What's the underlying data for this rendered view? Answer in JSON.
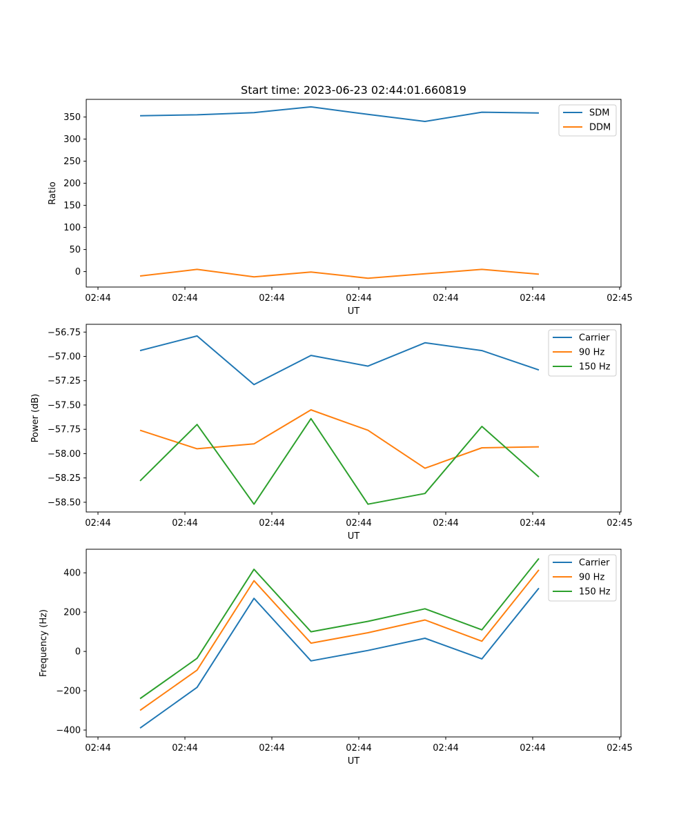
{
  "figure_title": "Start time: 2023-06-23 02:44:01.660819",
  "colors": {
    "blue": "#1f77b4",
    "orange": "#ff7f0e",
    "green": "#2ca02c"
  },
  "chart_data": [
    {
      "type": "line",
      "title": "Start time: 2023-06-23 02:44:01.660819",
      "xlabel": "UT",
      "ylabel": "Ratio",
      "x_ticks": [
        "02:44",
        "02:44",
        "02:44",
        "02:44",
        "02:44",
        "02:44",
        "02:44"
      ],
      "x_ticks_end": "02:45",
      "y_ticks": [
        0,
        50,
        100,
        150,
        200,
        250,
        300,
        350
      ],
      "ylim": [
        -35,
        390
      ],
      "legend_position": "top-right",
      "x": [
        1,
        2,
        3,
        4,
        5,
        6,
        7,
        8
      ],
      "series": [
        {
          "name": "SDM",
          "color": "#1f77b4",
          "values": [
            353,
            355,
            360,
            373,
            356,
            340,
            361,
            359
          ]
        },
        {
          "name": "DDM",
          "color": "#ff7f0e",
          "values": [
            -10,
            5,
            -12,
            -1,
            -15,
            -5,
            5,
            -6
          ]
        }
      ]
    },
    {
      "type": "line",
      "title": "",
      "xlabel": "UT",
      "ylabel": "Power (dB)",
      "x_ticks": [
        "02:44",
        "02:44",
        "02:44",
        "02:44",
        "02:44",
        "02:44",
        "02:44"
      ],
      "x_ticks_end": "02:45",
      "y_ticks": [
        -56.75,
        -57.0,
        -57.25,
        -57.5,
        -57.75,
        -58.0,
        -58.25,
        -58.5
      ],
      "y_tick_labels": [
        "−56.75",
        "−57.00",
        "−57.25",
        "−57.50",
        "−57.75",
        "−58.00",
        "−58.25",
        "−58.50"
      ],
      "ylim": [
        -58.6,
        -56.67
      ],
      "legend_position": "top-right",
      "x": [
        1,
        2,
        3,
        4,
        5,
        6,
        7,
        8
      ],
      "series": [
        {
          "name": "Carrier",
          "color": "#1f77b4",
          "values": [
            -56.94,
            -56.79,
            -57.29,
            -56.99,
            -57.1,
            -56.86,
            -56.94,
            -57.14
          ]
        },
        {
          "name": "90 Hz",
          "color": "#ff7f0e",
          "values": [
            -57.76,
            -57.95,
            -57.9,
            -57.55,
            -57.76,
            -58.15,
            -57.94,
            -57.93
          ]
        },
        {
          "name": "150 Hz",
          "color": "#2ca02c",
          "values": [
            -58.28,
            -57.7,
            -58.52,
            -57.64,
            -58.52,
            -58.41,
            -57.72,
            -58.24
          ]
        }
      ]
    },
    {
      "type": "line",
      "title": "",
      "xlabel": "UT",
      "ylabel": "Frequency (Hz)",
      "x_ticks": [
        "02:44",
        "02:44",
        "02:44",
        "02:44",
        "02:44",
        "02:44",
        "02:44"
      ],
      "x_ticks_end": "02:45",
      "y_ticks": [
        -400,
        -200,
        0,
        200,
        400
      ],
      "y_tick_labels": [
        "−400",
        "−200",
        "0",
        "200",
        "400"
      ],
      "ylim": [
        -435,
        520
      ],
      "legend_position": "top-right",
      "x": [
        1,
        2,
        3,
        4,
        5,
        6,
        7,
        8
      ],
      "series": [
        {
          "name": "Carrier",
          "color": "#1f77b4",
          "values": [
            -390,
            -183,
            270,
            -48,
            5,
            67,
            -38,
            322
          ]
        },
        {
          "name": "90 Hz",
          "color": "#ff7f0e",
          "values": [
            -300,
            -95,
            360,
            42,
            95,
            160,
            52,
            415
          ]
        },
        {
          "name": "150 Hz",
          "color": "#2ca02c",
          "values": [
            -240,
            -35,
            418,
            100,
            153,
            217,
            110,
            473
          ]
        }
      ]
    }
  ]
}
